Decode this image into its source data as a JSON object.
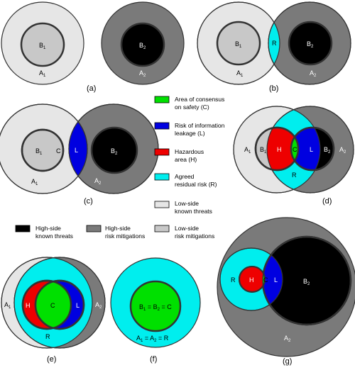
{
  "colors": {
    "low_known": "#e6e6e6",
    "low_mitigation": "#c8c8c8",
    "high_known": "#000000",
    "high_mitigation": "#7a7a7a",
    "consensus": "#00e000",
    "leakage": "#0000e0",
    "hazard": "#ee0000",
    "residual": "#00eeee",
    "stroke": "#333333"
  },
  "labels": {
    "A1": "A",
    "A2": "A",
    "B1": "B",
    "B2": "B",
    "sub1": "1",
    "sub2": "2",
    "R": "R",
    "C": "C",
    "L": "L",
    "H": "H",
    "f_b": "B",
    "f_b_rest": " = B",
    "f_b_tail": " = C",
    "f_a": "A",
    "f_a_rest": " = A",
    "f_a_tail": " = R"
  },
  "captions": {
    "a": "(a)",
    "b": "(b)",
    "c": "(c)",
    "d": "(d)",
    "e": "(e)",
    "f": "(f)",
    "g": "(g)"
  },
  "legend": {
    "consensus_1": "Area of consensus",
    "consensus_2": "on safety (C)",
    "leakage_1": "Risk of information",
    "leakage_2": "leakage (L)",
    "hazard_1": "Hazardous",
    "hazard_2": "area (H)",
    "residual_1": "Agreed",
    "residual_2": "residual risk (R)",
    "low_known_1": "Low-side",
    "low_known_2": "known threats",
    "high_known_1": "High-side",
    "high_known_2": "known threats",
    "high_mit_1": "High-side",
    "high_mit_2": "risk mitigations",
    "low_mit_1": "Low-side",
    "low_mit_2": "risk mitigations"
  }
}
